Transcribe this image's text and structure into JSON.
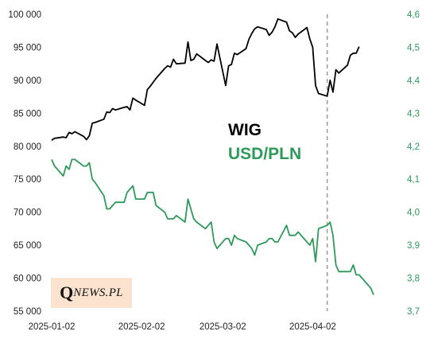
{
  "chart_data": {
    "type": "line",
    "title": "",
    "x_ticks": [
      "2025-01-02",
      "2025-02-02",
      "2025-03-02",
      "2025-04-02"
    ],
    "x_range": [
      "2025-01-02",
      "2025-04-23"
    ],
    "marker_date": "2025-04-07",
    "y_left": {
      "ticks": [
        "100 000",
        "95 000",
        "90 000",
        "85 000",
        "80 000",
        "75 000",
        "70 000",
        "65 000",
        "60 000",
        "55 000"
      ],
      "range": [
        55000,
        100000
      ]
    },
    "y_right": {
      "ticks": [
        "4,6",
        "4,5",
        "4,4",
        "4,3",
        "4,2",
        "4,1",
        "4,0",
        "3,9",
        "3,8",
        "3,7"
      ],
      "range": [
        3.7,
        4.6
      ]
    },
    "grid": false,
    "legend_position": "center-right",
    "colors": {
      "wig": "#000000",
      "usdpln": "#2e9a5a",
      "marker": "#999999",
      "logo_bg": "#fbe3cf"
    },
    "series": [
      {
        "name": "WIG",
        "axis": "left",
        "x": [
          "2025-01-02",
          "2025-01-03",
          "2025-01-06",
          "2025-01-07",
          "2025-01-08",
          "2025-01-09",
          "2025-01-10",
          "2025-01-13",
          "2025-01-14",
          "2025-01-15",
          "2025-01-16",
          "2025-01-17",
          "2025-01-20",
          "2025-01-21",
          "2025-01-22",
          "2025-01-23",
          "2025-01-24",
          "2025-01-27",
          "2025-01-28",
          "2025-01-29",
          "2025-01-30",
          "2025-01-31",
          "2025-02-03",
          "2025-02-04",
          "2025-02-05",
          "2025-02-06",
          "2025-02-07",
          "2025-02-10",
          "2025-02-11",
          "2025-02-12",
          "2025-02-13",
          "2025-02-14",
          "2025-02-17",
          "2025-02-18",
          "2025-02-19",
          "2025-02-20",
          "2025-02-21",
          "2025-02-24",
          "2025-02-25",
          "2025-02-26",
          "2025-02-27",
          "2025-02-28",
          "2025-03-03",
          "2025-03-04",
          "2025-03-05",
          "2025-03-06",
          "2025-03-07",
          "2025-03-10",
          "2025-03-11",
          "2025-03-12",
          "2025-03-13",
          "2025-03-14",
          "2025-03-17",
          "2025-03-18",
          "2025-03-19",
          "2025-03-20",
          "2025-03-21",
          "2025-03-24",
          "2025-03-25",
          "2025-03-26",
          "2025-03-27",
          "2025-03-28",
          "2025-03-31",
          "2025-04-01",
          "2025-04-02",
          "2025-04-03",
          "2025-04-04",
          "2025-04-07",
          "2025-04-08",
          "2025-04-09",
          "2025-04-10",
          "2025-04-11",
          "2025-04-14",
          "2025-04-15",
          "2025-04-16",
          "2025-04-17",
          "2025-04-18",
          "2025-04-22",
          "2025-04-23"
        ],
        "values": [
          80900,
          81200,
          81400,
          81300,
          82100,
          81900,
          82200,
          81500,
          81000,
          81600,
          83500,
          83600,
          84100,
          85200,
          85100,
          85700,
          85500,
          85900,
          86000,
          85500,
          87300,
          87000,
          86200,
          88600,
          89100,
          89700,
          90300,
          91800,
          92200,
          92000,
          93200,
          92500,
          92600,
          95800,
          93000,
          93200,
          94000,
          93000,
          92700,
          93100,
          92900,
          95500,
          89200,
          92200,
          92400,
          94100,
          93900,
          94800,
          96200,
          97100,
          97800,
          98100,
          97700,
          96800,
          97300,
          98100,
          99300,
          98800,
          97500,
          97200,
          96500,
          97000,
          98000,
          96300,
          95000,
          89200,
          88000,
          87600,
          90000,
          88200,
          91600,
          91100,
          92300,
          93800,
          94100,
          94100,
          95100,
          null,
          null
        ]
      },
      {
        "name": "USD/PLN",
        "axis": "right",
        "x": [
          "2025-01-02",
          "2025-01-03",
          "2025-01-06",
          "2025-01-07",
          "2025-01-08",
          "2025-01-09",
          "2025-01-10",
          "2025-01-13",
          "2025-01-14",
          "2025-01-15",
          "2025-01-16",
          "2025-01-17",
          "2025-01-20",
          "2025-01-21",
          "2025-01-22",
          "2025-01-23",
          "2025-01-24",
          "2025-01-27",
          "2025-01-28",
          "2025-01-29",
          "2025-01-30",
          "2025-01-31",
          "2025-02-03",
          "2025-02-04",
          "2025-02-05",
          "2025-02-06",
          "2025-02-07",
          "2025-02-10",
          "2025-02-11",
          "2025-02-12",
          "2025-02-13",
          "2025-02-14",
          "2025-02-17",
          "2025-02-18",
          "2025-02-19",
          "2025-02-20",
          "2025-02-21",
          "2025-02-24",
          "2025-02-25",
          "2025-02-26",
          "2025-02-27",
          "2025-02-28",
          "2025-03-03",
          "2025-03-04",
          "2025-03-05",
          "2025-03-06",
          "2025-03-07",
          "2025-03-10",
          "2025-03-11",
          "2025-03-12",
          "2025-03-13",
          "2025-03-14",
          "2025-03-17",
          "2025-03-18",
          "2025-03-19",
          "2025-03-20",
          "2025-03-21",
          "2025-03-24",
          "2025-03-25",
          "2025-03-26",
          "2025-03-27",
          "2025-03-28",
          "2025-03-31",
          "2025-04-01",
          "2025-04-02",
          "2025-04-03",
          "2025-04-04",
          "2025-04-07",
          "2025-04-08",
          "2025-04-09",
          "2025-04-10",
          "2025-04-11",
          "2025-04-14",
          "2025-04-15",
          "2025-04-16",
          "2025-04-17",
          "2025-04-18",
          "2025-04-22",
          "2025-04-23"
        ],
        "values": [
          4.16,
          4.14,
          4.11,
          4.14,
          4.13,
          4.16,
          4.16,
          4.14,
          4.14,
          4.15,
          4.1,
          4.09,
          4.05,
          4.01,
          4.01,
          4.02,
          4.03,
          4.03,
          4.06,
          4.07,
          4.08,
          4.04,
          4.04,
          4.06,
          4.06,
          4.06,
          4.02,
          4.0,
          3.98,
          3.98,
          3.98,
          3.99,
          3.97,
          4.04,
          4.01,
          3.98,
          3.97,
          3.95,
          3.96,
          3.97,
          3.91,
          3.89,
          3.92,
          3.92,
          3.9,
          3.93,
          3.92,
          3.91,
          3.9,
          3.89,
          3.87,
          3.9,
          3.91,
          3.92,
          3.92,
          3.91,
          3.91,
          3.96,
          3.93,
          3.93,
          3.93,
          3.94,
          3.91,
          3.9,
          3.92,
          3.85,
          3.95,
          3.96,
          3.97,
          3.93,
          3.84,
          3.82,
          3.82,
          3.82,
          3.84,
          3.81,
          3.81,
          3.77,
          3.75
        ]
      }
    ],
    "legend": [
      "WIG",
      "USD/PLN"
    ]
  },
  "logo": {
    "initial": "Q",
    "rest": "NEWS.PL"
  }
}
